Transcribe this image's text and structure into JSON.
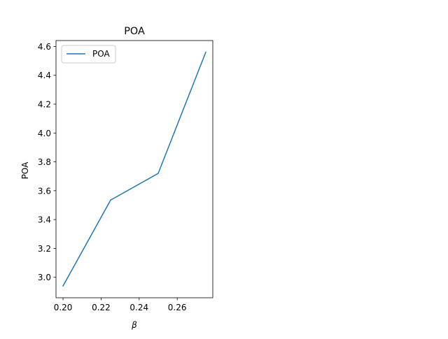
{
  "chart_data": {
    "type": "line",
    "title": "POA",
    "xlabel": "β",
    "ylabel": "POA",
    "x": [
      0.2,
      0.225,
      0.25,
      0.275
    ],
    "series": [
      {
        "name": "POA",
        "values": [
          2.94,
          3.535,
          3.72,
          4.56
        ],
        "color": "#1f77b4"
      }
    ],
    "xlim": [
      0.1963,
      0.2787
    ],
    "ylim": [
      2.858,
      4.641
    ],
    "xticks": [
      0.2,
      0.22,
      0.24,
      0.26
    ],
    "xtick_labels": [
      "0.20",
      "0.22",
      "0.24",
      "0.26"
    ],
    "yticks": [
      3.0,
      3.2,
      3.4,
      3.6,
      3.8,
      4.0,
      4.2,
      4.4,
      4.6
    ],
    "ytick_labels": [
      "3.0",
      "3.2",
      "3.4",
      "3.6",
      "3.8",
      "4.0",
      "4.2",
      "4.4",
      "4.6"
    ],
    "grid": false,
    "legend_position": "upper-left"
  }
}
